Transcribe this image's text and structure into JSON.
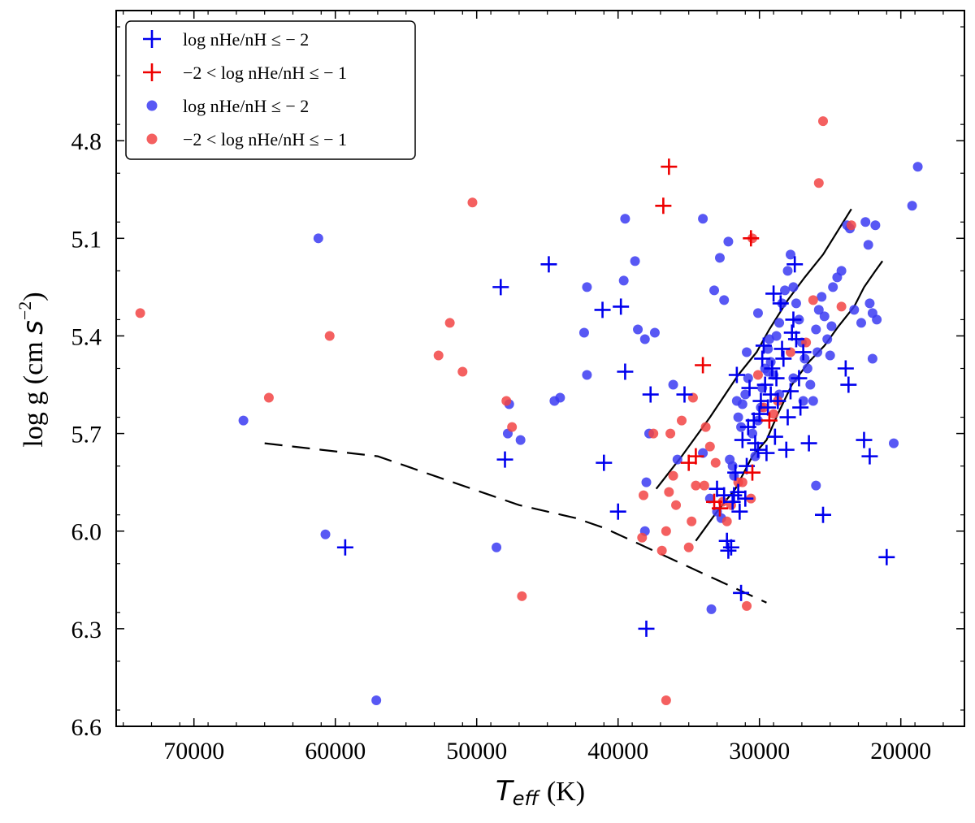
{
  "chart_data": {
    "type": "scatter",
    "title": "",
    "xlabel": "T_eff (K)",
    "xlabel_main": "T",
    "xlabel_sub": "eff",
    "xlabel_unit": "(K)",
    "ylabel": "log g (cm s^-2)",
    "xlim": [
      75500,
      15500
    ],
    "ylim": [
      6.6,
      4.4
    ],
    "x_inverted": true,
    "y_inverted": true,
    "x_ticks": [
      70000,
      60000,
      50000,
      40000,
      30000,
      20000
    ],
    "x_tick_labels": [
      "70000",
      "60000",
      "50000",
      "40000",
      "30000",
      "20000"
    ],
    "y_ticks": [
      4.8,
      5.1,
      5.4,
      5.7,
      6.0,
      6.3,
      6.6
    ],
    "y_tick_labels": [
      "4.8",
      "5.1",
      "5.4",
      "5.7",
      "6.0",
      "6.3",
      "6.6"
    ],
    "grid": false,
    "legend_position": "top-left",
    "colors": {
      "blue": "#0000ee",
      "red": "#ee0000",
      "blue_dot": "#3b3bf2",
      "red_dot": "#f24444",
      "line": "#000000"
    },
    "legend": [
      {
        "label": "log nHe/nH ≤ − 2",
        "marker": "plus",
        "color": "#0000ee"
      },
      {
        "label": "−2 < log nHe/nH ≤ − 1",
        "marker": "plus",
        "color": "#ee0000"
      },
      {
        "label": "log nHe/nH ≤ − 2",
        "marker": "circle",
        "color": "#3b3bf2"
      },
      {
        "label": "−2 < log nHe/nH ≤ − 1",
        "marker": "circle",
        "color": "#f24444"
      }
    ],
    "series": [
      {
        "name": "blue plus: log nHe/nH <= -2",
        "marker": "plus",
        "color": "#0000ee",
        "points": [
          [
            59300,
            6.05
          ],
          [
            48300,
            5.25
          ],
          [
            48000,
            5.78
          ],
          [
            44900,
            5.18
          ],
          [
            41100,
            5.32
          ],
          [
            41000,
            5.79
          ],
          [
            39800,
            5.31
          ],
          [
            40000,
            5.94
          ],
          [
            39500,
            5.51
          ],
          [
            37700,
            5.58
          ],
          [
            35300,
            5.58
          ],
          [
            38000,
            6.3
          ],
          [
            33000,
            5.87
          ],
          [
            32500,
            5.89
          ],
          [
            32300,
            6.03
          ],
          [
            32200,
            6.06
          ],
          [
            32000,
            6.05
          ],
          [
            31900,
            5.91
          ],
          [
            31800,
            5.89
          ],
          [
            31700,
            5.82
          ],
          [
            31500,
            5.88
          ],
          [
            31400,
            5.94
          ],
          [
            31300,
            6.19
          ],
          [
            31200,
            5.72
          ],
          [
            31000,
            5.9
          ],
          [
            30900,
            5.8
          ],
          [
            30800,
            5.68
          ],
          [
            30700,
            5.56
          ],
          [
            31600,
            5.52
          ],
          [
            30400,
            5.66
          ],
          [
            30300,
            5.73
          ],
          [
            30100,
            5.75
          ],
          [
            30000,
            5.64
          ],
          [
            29900,
            5.6
          ],
          [
            29800,
            5.47
          ],
          [
            29700,
            5.43
          ],
          [
            29600,
            5.55
          ],
          [
            29500,
            5.76
          ],
          [
            29400,
            5.62
          ],
          [
            29200,
            5.58
          ],
          [
            29100,
            5.5
          ],
          [
            29000,
            5.27
          ],
          [
            28900,
            5.71
          ],
          [
            28800,
            5.53
          ],
          [
            28700,
            5.6
          ],
          [
            28500,
            5.3
          ],
          [
            28400,
            5.44
          ],
          [
            28300,
            5.47
          ],
          [
            28100,
            5.75
          ],
          [
            28000,
            5.65
          ],
          [
            27800,
            5.57
          ],
          [
            27700,
            5.39
          ],
          [
            27600,
            5.35
          ],
          [
            27500,
            5.18
          ],
          [
            27400,
            5.41
          ],
          [
            27200,
            5.53
          ],
          [
            27100,
            5.62
          ],
          [
            26900,
            5.45
          ],
          [
            26500,
            5.73
          ],
          [
            25500,
            5.95
          ],
          [
            23900,
            5.5
          ],
          [
            23700,
            5.55
          ],
          [
            22600,
            5.72
          ],
          [
            22200,
            5.77
          ],
          [
            21000,
            6.08
          ]
        ]
      },
      {
        "name": "red plus: -2 < log nHe/nH <= -1",
        "marker": "plus",
        "color": "#ee0000",
        "points": [
          [
            36400,
            4.88
          ],
          [
            36800,
            5.0
          ],
          [
            30600,
            5.1
          ],
          [
            34000,
            5.49
          ],
          [
            35000,
            5.79
          ],
          [
            34500,
            5.77
          ],
          [
            33200,
            5.91
          ],
          [
            32800,
            5.93
          ],
          [
            30500,
            5.82
          ],
          [
            29300,
            5.66
          ]
        ]
      },
      {
        "name": "blue dot: log nHe/nH <= -2",
        "marker": "circle",
        "color": "#3b3bf2",
        "points": [
          [
            61200,
            5.1
          ],
          [
            66500,
            5.66
          ],
          [
            60700,
            6.01
          ],
          [
            57100,
            6.52
          ],
          [
            48600,
            6.05
          ],
          [
            47700,
            5.61
          ],
          [
            47800,
            5.7
          ],
          [
            46900,
            5.72
          ],
          [
            44500,
            5.6
          ],
          [
            44100,
            5.59
          ],
          [
            42200,
            5.25
          ],
          [
            42400,
            5.39
          ],
          [
            42200,
            5.52
          ],
          [
            39600,
            5.23
          ],
          [
            39500,
            5.04
          ],
          [
            38800,
            5.17
          ],
          [
            38600,
            5.38
          ],
          [
            38100,
            5.41
          ],
          [
            37400,
            5.39
          ],
          [
            37800,
            5.7
          ],
          [
            38000,
            5.85
          ],
          [
            38100,
            6.0
          ],
          [
            36100,
            5.55
          ],
          [
            34000,
            5.04
          ],
          [
            33200,
            5.26
          ],
          [
            32800,
            5.16
          ],
          [
            32200,
            5.11
          ],
          [
            32500,
            5.29
          ],
          [
            33400,
            6.24
          ],
          [
            35800,
            5.78
          ],
          [
            34000,
            5.76
          ],
          [
            33500,
            5.9
          ],
          [
            33000,
            5.94
          ],
          [
            32700,
            5.96
          ],
          [
            32100,
            5.78
          ],
          [
            31800,
            5.83
          ],
          [
            31600,
            5.6
          ],
          [
            31500,
            5.65
          ],
          [
            31300,
            5.68
          ],
          [
            31200,
            5.61
          ],
          [
            31000,
            5.58
          ],
          [
            30800,
            5.53
          ],
          [
            30500,
            5.7
          ],
          [
            30300,
            5.77
          ],
          [
            30100,
            5.66
          ],
          [
            29900,
            5.62
          ],
          [
            29800,
            5.56
          ],
          [
            29600,
            5.5
          ],
          [
            29400,
            5.44
          ],
          [
            29200,
            5.48
          ],
          [
            29000,
            5.52
          ],
          [
            28800,
            5.4
          ],
          [
            28600,
            5.36
          ],
          [
            28400,
            5.3
          ],
          [
            28200,
            5.26
          ],
          [
            28000,
            5.2
          ],
          [
            27800,
            5.15
          ],
          [
            27600,
            5.25
          ],
          [
            27400,
            5.3
          ],
          [
            27200,
            5.35
          ],
          [
            27000,
            5.42
          ],
          [
            26800,
            5.47
          ],
          [
            26600,
            5.5
          ],
          [
            26400,
            5.55
          ],
          [
            26200,
            5.6
          ],
          [
            26000,
            5.38
          ],
          [
            25800,
            5.32
          ],
          [
            25600,
            5.28
          ],
          [
            25400,
            5.34
          ],
          [
            25200,
            5.41
          ],
          [
            25000,
            5.46
          ],
          [
            24800,
            5.25
          ],
          [
            24500,
            5.22
          ],
          [
            24200,
            5.2
          ],
          [
            23800,
            5.06
          ],
          [
            23600,
            5.07
          ],
          [
            23300,
            5.32
          ],
          [
            22800,
            5.36
          ],
          [
            22500,
            5.05
          ],
          [
            22300,
            5.12
          ],
          [
            22000,
            5.47
          ],
          [
            21700,
            5.35
          ],
          [
            22200,
            5.3
          ],
          [
            22000,
            5.33
          ],
          [
            21800,
            5.06
          ],
          [
            19200,
            5.0
          ],
          [
            18800,
            4.88
          ],
          [
            20500,
            5.73
          ],
          [
            26000,
            5.86
          ],
          [
            29300,
            5.41
          ],
          [
            30900,
            5.45
          ],
          [
            31900,
            5.8
          ],
          [
            27600,
            5.53
          ],
          [
            28600,
            5.58
          ],
          [
            30100,
            5.33
          ],
          [
            26900,
            5.6
          ],
          [
            25900,
            5.45
          ],
          [
            24900,
            5.37
          ],
          [
            29400,
            5.51
          ]
        ]
      },
      {
        "name": "red dot: -2 < log nHe/nH <= -1",
        "marker": "circle",
        "color": "#f24444",
        "points": [
          [
            73800,
            5.33
          ],
          [
            64700,
            5.59
          ],
          [
            60400,
            5.4
          ],
          [
            52700,
            5.46
          ],
          [
            51900,
            5.36
          ],
          [
            51000,
            5.51
          ],
          [
            50300,
            4.99
          ],
          [
            47900,
            5.6
          ],
          [
            47500,
            5.68
          ],
          [
            37500,
            5.7
          ],
          [
            38200,
            5.89
          ],
          [
            38300,
            6.02
          ],
          [
            36900,
            6.06
          ],
          [
            36600,
            6.0
          ],
          [
            36400,
            5.88
          ],
          [
            35900,
            5.92
          ],
          [
            36100,
            5.83
          ],
          [
            36300,
            5.7
          ],
          [
            35500,
            5.66
          ],
          [
            34700,
            5.59
          ],
          [
            34800,
            5.97
          ],
          [
            35000,
            6.05
          ],
          [
            33800,
            5.68
          ],
          [
            33500,
            5.74
          ],
          [
            33100,
            5.79
          ],
          [
            32300,
            5.97
          ],
          [
            32000,
            5.92
          ],
          [
            31500,
            5.85
          ],
          [
            30900,
            6.23
          ],
          [
            30500,
            5.1
          ],
          [
            30100,
            5.52
          ],
          [
            29700,
            5.62
          ],
          [
            29000,
            5.64
          ],
          [
            28700,
            5.6
          ],
          [
            27800,
            5.45
          ],
          [
            26700,
            5.42
          ],
          [
            26200,
            5.29
          ],
          [
            25500,
            4.74
          ],
          [
            25800,
            4.93
          ],
          [
            24200,
            5.31
          ],
          [
            23500,
            5.06
          ],
          [
            36600,
            6.52
          ],
          [
            46800,
            6.2
          ],
          [
            34500,
            5.86
          ],
          [
            33900,
            5.86
          ],
          [
            32600,
            5.91
          ],
          [
            31200,
            5.85
          ],
          [
            30600,
            5.9
          ]
        ]
      }
    ],
    "lines": [
      {
        "name": "dashed reference track",
        "style": "dashed",
        "color": "#000000",
        "points": [
          [
            65000,
            5.73
          ],
          [
            63000,
            5.74
          ],
          [
            61000,
            5.75
          ],
          [
            59000,
            5.76
          ],
          [
            57000,
            5.77
          ],
          [
            55000,
            5.8
          ],
          [
            53000,
            5.83
          ],
          [
            51000,
            5.86
          ],
          [
            49000,
            5.89
          ],
          [
            47000,
            5.92
          ],
          [
            45000,
            5.94
          ],
          [
            43000,
            5.96
          ],
          [
            41000,
            5.99
          ],
          [
            39000,
            6.03
          ],
          [
            37000,
            6.07
          ],
          [
            35000,
            6.11
          ],
          [
            33000,
            6.15
          ],
          [
            31000,
            6.19
          ],
          [
            29500,
            6.22
          ]
        ]
      },
      {
        "name": "upper solid track",
        "style": "solid",
        "color": "#000000",
        "points": [
          [
            37300,
            5.87
          ],
          [
            35500,
            5.77
          ],
          [
            33500,
            5.65
          ],
          [
            31500,
            5.52
          ],
          [
            30200,
            5.45
          ],
          [
            29300,
            5.38
          ],
          [
            28000,
            5.29
          ],
          [
            26800,
            5.22
          ],
          [
            25500,
            5.15
          ],
          [
            24500,
            5.08
          ],
          [
            23500,
            5.01
          ]
        ]
      },
      {
        "name": "lower solid track",
        "style": "solid",
        "color": "#000000",
        "points": [
          [
            34500,
            6.03
          ],
          [
            33000,
            5.94
          ],
          [
            31700,
            5.87
          ],
          [
            30500,
            5.77
          ],
          [
            29500,
            5.72
          ],
          [
            28700,
            5.64
          ],
          [
            27700,
            5.55
          ],
          [
            26500,
            5.48
          ],
          [
            25400,
            5.43
          ],
          [
            24400,
            5.37
          ],
          [
            23300,
            5.31
          ],
          [
            22600,
            5.25
          ],
          [
            21800,
            5.2
          ],
          [
            21300,
            5.17
          ]
        ]
      }
    ]
  }
}
